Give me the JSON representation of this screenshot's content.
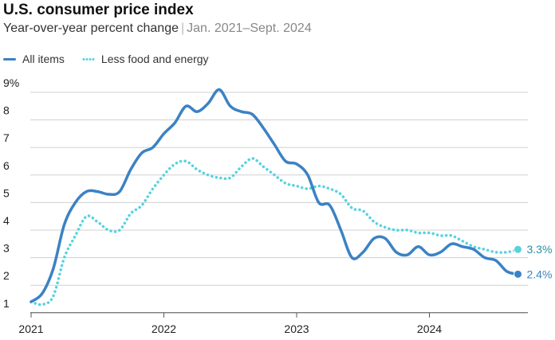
{
  "title": "U.S. consumer price index",
  "subtitle": "Year-over-year percent change",
  "subtitle_range": "Jan. 2021–Sept. 2024",
  "colors": {
    "all_items": "#3b82c4",
    "core": "#55d3e0",
    "grid": "#d0d0d0"
  },
  "chart_data": {
    "type": "line",
    "ylim": [
      1,
      9
    ],
    "yticks": [
      "1",
      "2",
      "3",
      "4",
      "5",
      "6",
      "7",
      "8",
      "9%"
    ],
    "xticks": [
      "2021",
      "2022",
      "2023",
      "2024"
    ],
    "x_start": "2021-01",
    "series": [
      {
        "name": "All items",
        "style": "solid",
        "values": [
          1.4,
          1.7,
          2.6,
          4.2,
          5.0,
          5.4,
          5.4,
          5.3,
          5.4,
          6.2,
          6.8,
          7.0,
          7.5,
          7.9,
          8.5,
          8.3,
          8.6,
          9.1,
          8.5,
          8.3,
          8.2,
          7.7,
          7.1,
          6.5,
          6.4,
          6.0,
          5.0,
          4.9,
          4.0,
          3.0,
          3.2,
          3.7,
          3.7,
          3.2,
          3.1,
          3.4,
          3.1,
          3.2,
          3.5,
          3.4,
          3.3,
          3.0,
          2.9,
          2.5,
          2.4
        ],
        "end_label": "2.4%"
      },
      {
        "name": "Less food and energy",
        "style": "dotted",
        "values": [
          1.4,
          1.3,
          1.6,
          3.0,
          3.8,
          4.5,
          4.3,
          4.0,
          4.0,
          4.6,
          4.9,
          5.5,
          6.0,
          6.4,
          6.5,
          6.2,
          6.0,
          5.9,
          5.9,
          6.3,
          6.6,
          6.3,
          6.0,
          5.7,
          5.6,
          5.5,
          5.6,
          5.5,
          5.3,
          4.8,
          4.7,
          4.3,
          4.1,
          4.0,
          4.0,
          3.9,
          3.9,
          3.8,
          3.8,
          3.6,
          3.4,
          3.3,
          3.2,
          3.2,
          3.3
        ],
        "end_label": "3.3%"
      }
    ]
  }
}
